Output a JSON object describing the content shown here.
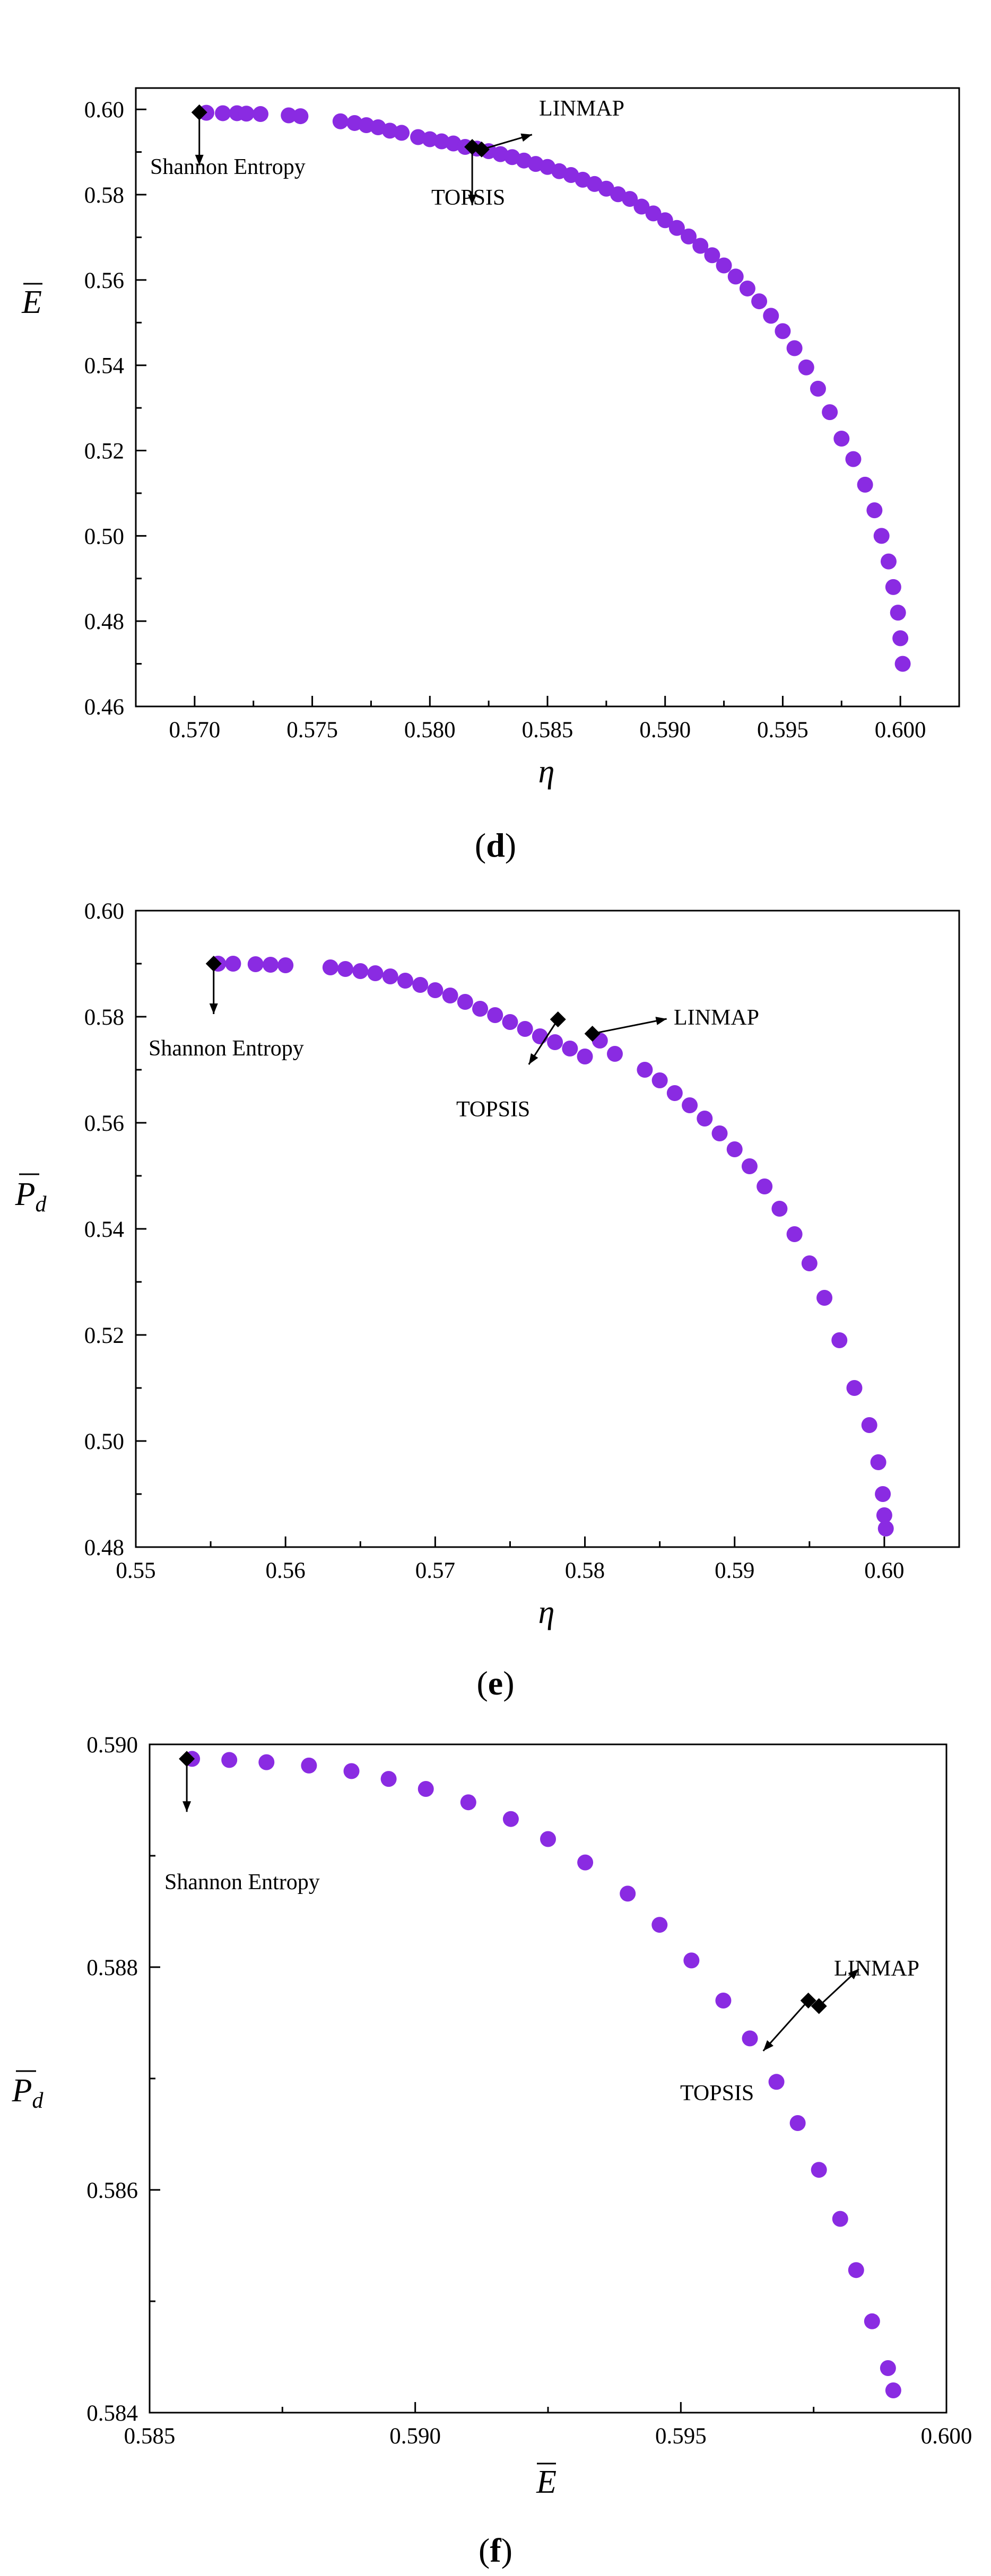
{
  "marker_color": "#8a2be2",
  "optimal_color": "#000000",
  "chart_data": [
    {
      "type": "scatter",
      "panel_label": "d",
      "xlabel": "η",
      "ylabel": "E",
      "ylabel_overbar": true,
      "ylabel_sub": "",
      "xlim": [
        0.5675,
        0.6025
      ],
      "ylim": [
        0.46,
        0.605
      ],
      "xticks": [
        "0.570",
        "0.575",
        "0.580",
        "0.585",
        "0.590",
        "0.595",
        "0.600"
      ],
      "xtick_values": [
        0.57,
        0.575,
        0.58,
        0.585,
        0.59,
        0.595,
        0.6
      ],
      "yticks": [
        "0.46",
        "0.48",
        "0.50",
        "0.52",
        "0.54",
        "0.56",
        "0.58",
        "0.60"
      ],
      "ytick_values": [
        0.46,
        0.48,
        0.5,
        0.52,
        0.54,
        0.56,
        0.58,
        0.6
      ],
      "points": [
        [
          0.5705,
          0.5992
        ],
        [
          0.5712,
          0.5991
        ],
        [
          0.5718,
          0.5991
        ],
        [
          0.5722,
          0.599
        ],
        [
          0.5728,
          0.5989
        ],
        [
          0.574,
          0.5986
        ],
        [
          0.5745,
          0.5984
        ],
        [
          0.5762,
          0.5972
        ],
        [
          0.5768,
          0.5968
        ],
        [
          0.5773,
          0.5963
        ],
        [
          0.5778,
          0.5958
        ],
        [
          0.5783,
          0.595
        ],
        [
          0.5788,
          0.5945
        ],
        [
          0.5795,
          0.5935
        ],
        [
          0.58,
          0.593
        ],
        [
          0.5805,
          0.5925
        ],
        [
          0.581,
          0.592
        ],
        [
          0.5815,
          0.5912
        ],
        [
          0.582,
          0.5908
        ],
        [
          0.5825,
          0.5902
        ],
        [
          0.583,
          0.5895
        ],
        [
          0.5835,
          0.5888
        ],
        [
          0.584,
          0.588
        ],
        [
          0.5845,
          0.5872
        ],
        [
          0.585,
          0.5865
        ],
        [
          0.5855,
          0.5855
        ],
        [
          0.586,
          0.5846
        ],
        [
          0.5865,
          0.5835
        ],
        [
          0.587,
          0.5825
        ],
        [
          0.5875,
          0.5814
        ],
        [
          0.588,
          0.5801
        ],
        [
          0.5885,
          0.579
        ],
        [
          0.589,
          0.5772
        ],
        [
          0.5895,
          0.5756
        ],
        [
          0.59,
          0.574
        ],
        [
          0.5905,
          0.5722
        ],
        [
          0.591,
          0.5702
        ],
        [
          0.5915,
          0.568
        ],
        [
          0.592,
          0.5658
        ],
        [
          0.5925,
          0.5634
        ],
        [
          0.593,
          0.5608
        ],
        [
          0.5935,
          0.558
        ],
        [
          0.594,
          0.555
        ],
        [
          0.5945,
          0.5516
        ],
        [
          0.595,
          0.548
        ],
        [
          0.5955,
          0.544
        ],
        [
          0.596,
          0.5395
        ],
        [
          0.5965,
          0.5345
        ],
        [
          0.597,
          0.529
        ],
        [
          0.5975,
          0.5228
        ],
        [
          0.598,
          0.518
        ],
        [
          0.5985,
          0.512
        ],
        [
          0.5989,
          0.506
        ],
        [
          0.5992,
          0.5
        ],
        [
          0.5995,
          0.494
        ],
        [
          0.5997,
          0.488
        ],
        [
          0.5999,
          0.482
        ],
        [
          0.6,
          0.476
        ],
        [
          0.6001,
          0.47
        ]
      ],
      "highlights": [
        {
          "name": "Shannon Entropy",
          "x": 0.5702,
          "y": 0.5993
        },
        {
          "name": "TOPSIS",
          "x": 0.5818,
          "y": 0.5912
        },
        {
          "name": "LINMAP",
          "x": 0.5822,
          "y": 0.5906
        }
      ]
    },
    {
      "type": "scatter",
      "panel_label": "e",
      "xlabel": "η",
      "ylabel": "P",
      "ylabel_overbar": true,
      "ylabel_sub": "d",
      "xlim": [
        0.55,
        0.605
      ],
      "ylim": [
        0.48,
        0.6
      ],
      "xticks": [
        "0.55",
        "0.56",
        "0.57",
        "0.58",
        "0.59",
        "0.60"
      ],
      "xtick_values": [
        0.55,
        0.56,
        0.57,
        0.58,
        0.59,
        0.6
      ],
      "yticks": [
        "0.48",
        "0.50",
        "0.52",
        "0.54",
        "0.56",
        "0.58",
        "0.60"
      ],
      "ytick_values": [
        0.48,
        0.5,
        0.52,
        0.54,
        0.56,
        0.58,
        0.6
      ],
      "points": [
        [
          0.5555,
          0.59
        ],
        [
          0.5565,
          0.59
        ],
        [
          0.558,
          0.5899
        ],
        [
          0.559,
          0.5898
        ],
        [
          0.56,
          0.5897
        ],
        [
          0.563,
          0.5893
        ],
        [
          0.564,
          0.589
        ],
        [
          0.565,
          0.5886
        ],
        [
          0.566,
          0.5882
        ],
        [
          0.567,
          0.5876
        ],
        [
          0.568,
          0.5868
        ],
        [
          0.569,
          0.586
        ],
        [
          0.57,
          0.585
        ],
        [
          0.571,
          0.584
        ],
        [
          0.572,
          0.5828
        ],
        [
          0.573,
          0.5815
        ],
        [
          0.574,
          0.5803
        ],
        [
          0.575,
          0.579
        ],
        [
          0.576,
          0.5777
        ],
        [
          0.577,
          0.5763
        ],
        [
          0.578,
          0.5752
        ],
        [
          0.579,
          0.574
        ],
        [
          0.58,
          0.5725
        ],
        [
          0.581,
          0.5755
        ],
        [
          0.582,
          0.573
        ],
        [
          0.584,
          0.57
        ],
        [
          0.585,
          0.568
        ],
        [
          0.586,
          0.5656
        ],
        [
          0.587,
          0.5633
        ],
        [
          0.588,
          0.5608
        ],
        [
          0.589,
          0.558
        ],
        [
          0.59,
          0.555
        ],
        [
          0.591,
          0.5518
        ],
        [
          0.592,
          0.548
        ],
        [
          0.593,
          0.5438
        ],
        [
          0.594,
          0.539
        ],
        [
          0.595,
          0.5335
        ],
        [
          0.596,
          0.527
        ],
        [
          0.597,
          0.519
        ],
        [
          0.598,
          0.51
        ],
        [
          0.599,
          0.503
        ],
        [
          0.5996,
          0.496
        ],
        [
          0.5999,
          0.49
        ],
        [
          0.6,
          0.486
        ],
        [
          0.6001,
          0.4835
        ]
      ],
      "highlights": [
        {
          "name": "Shannon Entropy",
          "x": 0.5552,
          "y": 0.59
        },
        {
          "name": "TOPSIS",
          "x": 0.5782,
          "y": 0.5795
        },
        {
          "name": "LINMAP",
          "x": 0.5805,
          "y": 0.5768
        }
      ]
    },
    {
      "type": "scatter",
      "panel_label": "f",
      "xlabel": "E",
      "xlabel_overbar": true,
      "ylabel": "P",
      "ylabel_overbar": true,
      "ylabel_sub": "d",
      "xlim": [
        0.585,
        0.6
      ],
      "ylim": [
        0.584,
        0.59
      ],
      "xticks": [
        "0.585",
        "0.590",
        "0.595",
        "0.600"
      ],
      "xtick_values": [
        0.585,
        0.59,
        0.595,
        0.6
      ],
      "yticks": [
        "0.584",
        "0.586",
        "0.588",
        "0.590"
      ],
      "ytick_values": [
        0.584,
        0.586,
        0.588,
        0.59
      ],
      "points": [
        [
          0.5858,
          0.58987
        ],
        [
          0.5865,
          0.58986
        ],
        [
          0.5872,
          0.58984
        ],
        [
          0.588,
          0.58981
        ],
        [
          0.5888,
          0.58976
        ],
        [
          0.5895,
          0.58969
        ],
        [
          0.5902,
          0.5896
        ],
        [
          0.591,
          0.58948
        ],
        [
          0.5918,
          0.58933
        ],
        [
          0.5925,
          0.58915
        ],
        [
          0.5932,
          0.58894
        ],
        [
          0.594,
          0.58866
        ],
        [
          0.5946,
          0.58838
        ],
        [
          0.5952,
          0.58806
        ],
        [
          0.5958,
          0.5877
        ],
        [
          0.5963,
          0.58736
        ],
        [
          0.5968,
          0.58697
        ],
        [
          0.5972,
          0.5866
        ],
        [
          0.5976,
          0.58618
        ],
        [
          0.598,
          0.58574
        ],
        [
          0.5983,
          0.58528
        ],
        [
          0.5986,
          0.58482
        ],
        [
          0.5989,
          0.5844
        ],
        [
          0.599,
          0.5842
        ]
      ],
      "highlights": [
        {
          "name": "Shannon Entropy",
          "x": 0.5857,
          "y": 0.58987
        },
        {
          "name": "TOPSIS",
          "x": 0.5974,
          "y": 0.5877
        },
        {
          "name": "LINMAP",
          "x": 0.5976,
          "y": 0.58765
        }
      ]
    }
  ]
}
